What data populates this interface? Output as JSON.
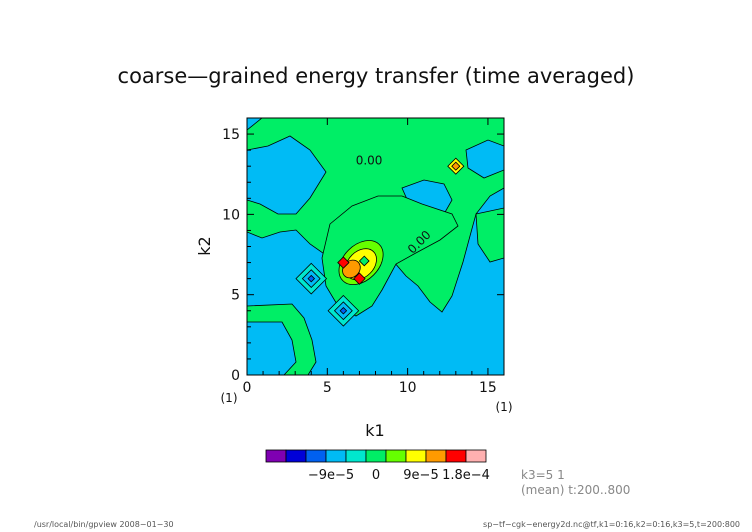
{
  "chart_data": {
    "type": "heatmap",
    "title": "coarse—grained energy transfer (time averaged)",
    "xlabel": "k1",
    "ylabel": "k2",
    "x_unit_label": "(1)",
    "y_unit_label": "(1)",
    "xlim": [
      0,
      16
    ],
    "ylim": [
      0,
      16
    ],
    "x_ticks": [
      0,
      5,
      10,
      15
    ],
    "y_ticks": [
      0,
      5,
      10,
      15
    ],
    "x_tick_labels": [
      "0",
      "5",
      "10",
      "15"
    ],
    "y_tick_labels": [
      "0",
      "5",
      "10",
      "15"
    ],
    "contour_labels": [
      {
        "text": "0.00",
        "k1": 7.6,
        "k2": 13.1
      },
      {
        "text": "0.00",
        "k1": 10.9,
        "k2": 8.1
      }
    ],
    "levels": [
      -0.00018,
      -0.000135,
      -9e-05,
      -4.5e-05,
      0,
      4.5e-05,
      9e-05,
      0.000135,
      0.00018
    ],
    "colorbar": {
      "colors": [
        "#7f00b2",
        "#0000d8",
        "#0060f0",
        "#00bbf5",
        "#00e7ce",
        "#00ee66",
        "#66ff00",
        "#ffff00",
        "#ff9a00",
        "#ff0000",
        "#ffb0b0"
      ],
      "tick_values": [
        -9e-05,
        0,
        9e-05,
        0.00018
      ],
      "tick_labels": [
        "−9e−5",
        "0",
        "9e−5",
        "1.8e−4"
      ]
    },
    "grid": false,
    "features": [
      {
        "kind": "lobe",
        "k1": 7.1,
        "k2": 7.0,
        "r1": 1.6,
        "r2": 1.1,
        "level": 4.5e-05
      },
      {
        "kind": "lobe",
        "k1": 7.1,
        "k2": 6.9,
        "r1": 1.1,
        "r2": 0.8,
        "level": 9e-05
      },
      {
        "kind": "lobe",
        "k1": 6.5,
        "k2": 6.6,
        "r1": 0.6,
        "r2": 0.5,
        "level": 0.000135
      },
      {
        "kind": "peak",
        "k1": 6.0,
        "k2": 7.0,
        "r": 0.35,
        "level": 0.00018
      },
      {
        "kind": "peak",
        "k1": 7.0,
        "k2": 6.0,
        "r": 0.35,
        "level": 0.00018
      },
      {
        "kind": "dip",
        "k1": 7.3,
        "k2": 7.1,
        "r": 0.3,
        "level": 4.5e-05
      },
      {
        "kind": "peak",
        "k1": 4.0,
        "k2": 6.0,
        "r": 0.95,
        "level": -4.5e-05
      },
      {
        "kind": "peak",
        "k1": 4.0,
        "k2": 6.0,
        "r": 0.55,
        "level": -9e-05
      },
      {
        "kind": "peak",
        "k1": 4.0,
        "k2": 6.0,
        "r": 0.2,
        "level": -0.000135
      },
      {
        "kind": "peak",
        "k1": 6.0,
        "k2": 4.0,
        "r": 0.95,
        "level": -4.5e-05
      },
      {
        "kind": "peak",
        "k1": 6.0,
        "k2": 4.0,
        "r": 0.55,
        "level": -9e-05
      },
      {
        "kind": "peak",
        "k1": 6.0,
        "k2": 4.0,
        "r": 0.2,
        "level": -0.000135
      },
      {
        "kind": "peak",
        "k1": 13.0,
        "k2": 13.0,
        "r": 0.5,
        "level": 9e-05
      },
      {
        "kind": "peak",
        "k1": 13.0,
        "k2": 13.0,
        "r": 0.25,
        "level": 0.000135
      }
    ]
  },
  "annotations": {
    "slice_label": "k3=5  1",
    "mean_label": "(mean) t:200..800",
    "footer_left": "/usr/local/bin/gpview   2008−01−30",
    "footer_right": "sp−tf−cgk−energy2d.nc@tf,k1=0:16,k2=0:16,k3=5,t=200:800"
  }
}
